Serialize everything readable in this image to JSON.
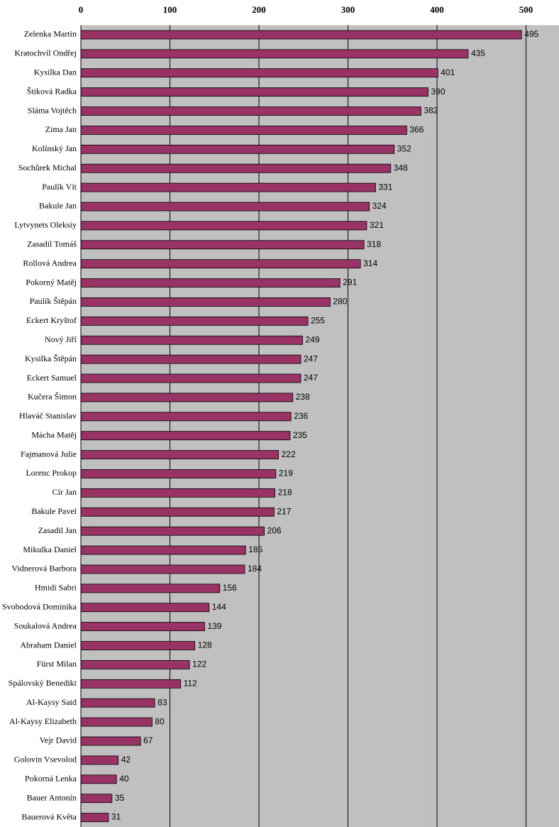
{
  "chart_data": {
    "type": "barh",
    "categories": [
      "Zelenka Martin",
      "Kratochvíl Ondřej",
      "Kysilka Dan",
      "Štiková Radka",
      "Sláma Vojtěch",
      "Zima Jan",
      "Kolínský Jan",
      "Sochůrek Michal",
      "Paulík Vít",
      "Bakule Jan",
      "Lytvynets Oleksiy",
      "Zasadil Tomáš",
      "Rollová Andrea",
      "Pokorný Matěj",
      "Paulík Štěpán",
      "Eckert Kryštof",
      "Nový Jiří",
      "Kysilka Štěpán",
      "Eckert Samuel",
      "Kučera Šimon",
      "Hlaváč Stanislav",
      "Mácha Matěj",
      "Fajmanová Julie",
      "Lorenc Prokop",
      "Cír Jan",
      "Bakule Pavel",
      "Zasadil Jan",
      "Mikulka Daniel",
      "Vidnerová Barbora",
      "Hmidi Sabri",
      "Svobodová Dominika",
      "Soukalová Andrea",
      "Abraham Daniel",
      "Fürst Milan",
      "Spálovský Benedikt",
      "Al-Kaysy Said",
      "Al-Kaysy Elizabeth",
      "Vejr David",
      "Golovin Vsevolod",
      "Pokorná Lenka",
      "Bauer Antonín",
      "Bauerová Květa"
    ],
    "values": [
      495,
      435,
      401,
      390,
      382,
      366,
      352,
      348,
      331,
      324,
      321,
      318,
      314,
      291,
      280,
      255,
      249,
      247,
      247,
      238,
      236,
      235,
      222,
      219,
      218,
      217,
      206,
      185,
      184,
      156,
      144,
      139,
      128,
      122,
      112,
      83,
      80,
      67,
      42,
      40,
      35,
      31
    ],
    "color": "#993366",
    "xlim": [
      0,
      537
    ],
    "xticks": [
      0,
      100,
      200,
      300,
      400,
      500
    ],
    "grid": true
  }
}
